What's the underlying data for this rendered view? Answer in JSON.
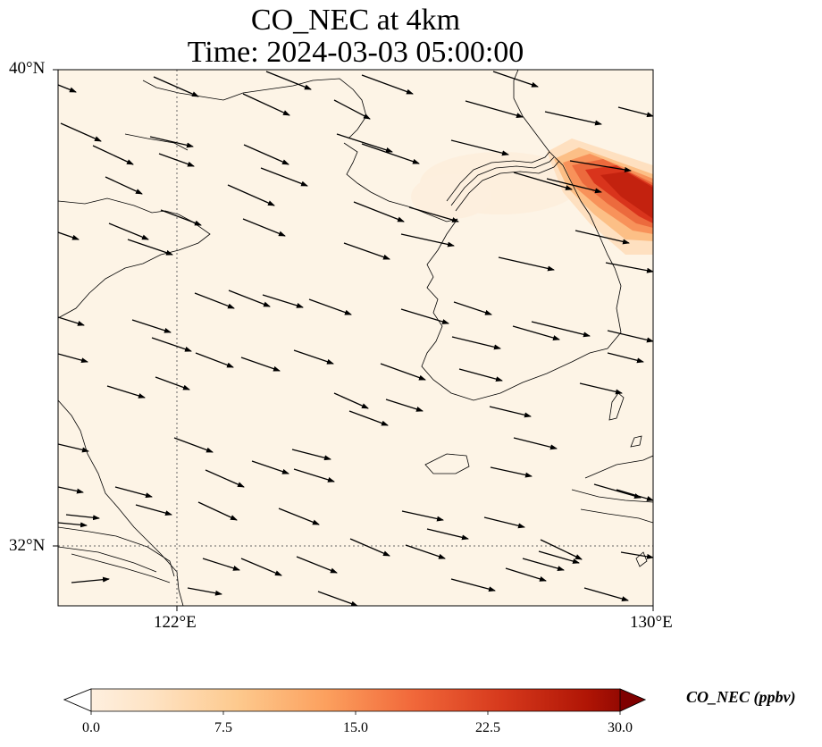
{
  "title": {
    "line1": "CO_NEC at 4km",
    "line2": "Time: 2024-03-03 05:00:00"
  },
  "map": {
    "lat_range": [
      31,
      40
    ],
    "lon_range": [
      120,
      130
    ],
    "lat_ticks": [
      "40°N",
      "32°N"
    ],
    "lon_ticks": [
      "122°E",
      "130°E"
    ],
    "gridlines": [
      {
        "type": "lon",
        "value": 122
      },
      {
        "type": "lat",
        "value": 32
      }
    ],
    "background_color": "#fdf4e6",
    "plume": {
      "region": "northeast corner near 40°N/130°E",
      "max_ppbv": 30,
      "color": "#c8230f"
    }
  },
  "colorbar": {
    "label": "CO_NEC (ppbv)",
    "ticks": [
      "0.0",
      "7.5",
      "15.0",
      "22.5",
      "30.0"
    ],
    "min": 0,
    "max": 30,
    "colors": [
      "#fff5eb",
      "#fee3c4",
      "#fdc98d",
      "#fca05e",
      "#f1683a",
      "#d73a1d",
      "#b01505",
      "#7f0000"
    ]
  },
  "winds": {
    "direction": "west-northwest",
    "count": 84
  }
}
